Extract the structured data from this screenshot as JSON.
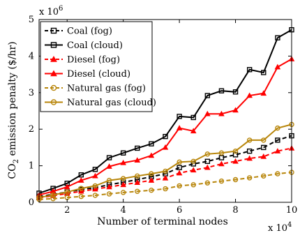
{
  "chart_data": {
    "type": "line",
    "xlabel": "Number of terminal nodes",
    "ylabel": "CO",
    "ylabel_subscript": "2",
    "ylabel_rest": " emission penalty ($/hr)",
    "x_multiplier_base": "x 10",
    "x_multiplier_exp": "4",
    "y_multiplier_base": "x 10",
    "y_multiplier_exp": "6",
    "xlim": [
      1,
      10
    ],
    "ylim": [
      0,
      5
    ],
    "xticks": [
      2,
      4,
      6,
      8,
      10
    ],
    "yticks": [
      0,
      1,
      2,
      3,
      4,
      5
    ],
    "xtick_labels": [
      "2",
      "4",
      "6",
      "8",
      "10"
    ],
    "ytick_labels": [
      "0",
      "1",
      "2",
      "3",
      "4",
      "5"
    ],
    "grid": false,
    "legend_position": "top-left",
    "x": [
      1,
      1.5,
      2,
      2.5,
      3,
      3.5,
      4,
      4.5,
      5,
      5.5,
      6,
      6.5,
      7,
      7.5,
      8,
      8.5,
      9,
      9.5,
      10
    ],
    "series": [
      {
        "name": "Coal (fog)",
        "color": "#000000",
        "dash": "dash",
        "marker": "square",
        "values": [
          0.15,
          0.22,
          0.28,
          0.35,
          0.4,
          0.48,
          0.55,
          0.62,
          0.7,
          0.78,
          0.95,
          1.05,
          1.12,
          1.22,
          1.3,
          1.4,
          1.5,
          1.7,
          1.82
        ]
      },
      {
        "name": "Coal (cloud)",
        "color": "#000000",
        "dash": "solid",
        "marker": "square",
        "values": [
          0.25,
          0.38,
          0.52,
          0.75,
          0.9,
          1.22,
          1.35,
          1.48,
          1.6,
          1.8,
          2.35,
          2.32,
          2.92,
          3.05,
          3.02,
          3.63,
          3.55,
          4.5,
          4.72
        ]
      },
      {
        "name": "Diesel (fog)",
        "color": "#ff0000",
        "dash": "dash",
        "marker": "triangle",
        "values": [
          0.12,
          0.18,
          0.24,
          0.3,
          0.36,
          0.42,
          0.48,
          0.54,
          0.6,
          0.66,
          0.8,
          0.88,
          0.95,
          1.05,
          1.12,
          1.2,
          1.25,
          1.4,
          1.48
        ]
      },
      {
        "name": "Diesel (cloud)",
        "color": "#ff0000",
        "dash": "solid",
        "marker": "triangle",
        "values": [
          0.2,
          0.3,
          0.42,
          0.6,
          0.72,
          0.98,
          1.08,
          1.15,
          1.28,
          1.5,
          2.03,
          1.95,
          2.42,
          2.42,
          2.52,
          2.92,
          2.98,
          3.7,
          3.92
        ]
      },
      {
        "name": "Natural gas (fog)",
        "color": "#b8860b",
        "dash": "dash",
        "marker": "circle",
        "values": [
          0.08,
          0.1,
          0.13,
          0.16,
          0.19,
          0.23,
          0.27,
          0.3,
          0.33,
          0.37,
          0.45,
          0.48,
          0.53,
          0.58,
          0.62,
          0.67,
          0.72,
          0.78,
          0.82
        ]
      },
      {
        "name": "Natural gas (cloud)",
        "color": "#b8860b",
        "dash": "solid",
        "marker": "circle",
        "values": [
          0.13,
          0.2,
          0.28,
          0.38,
          0.45,
          0.6,
          0.65,
          0.72,
          0.78,
          0.85,
          1.1,
          1.12,
          1.32,
          1.35,
          1.4,
          1.7,
          1.7,
          2.03,
          2.13
        ]
      }
    ]
  }
}
